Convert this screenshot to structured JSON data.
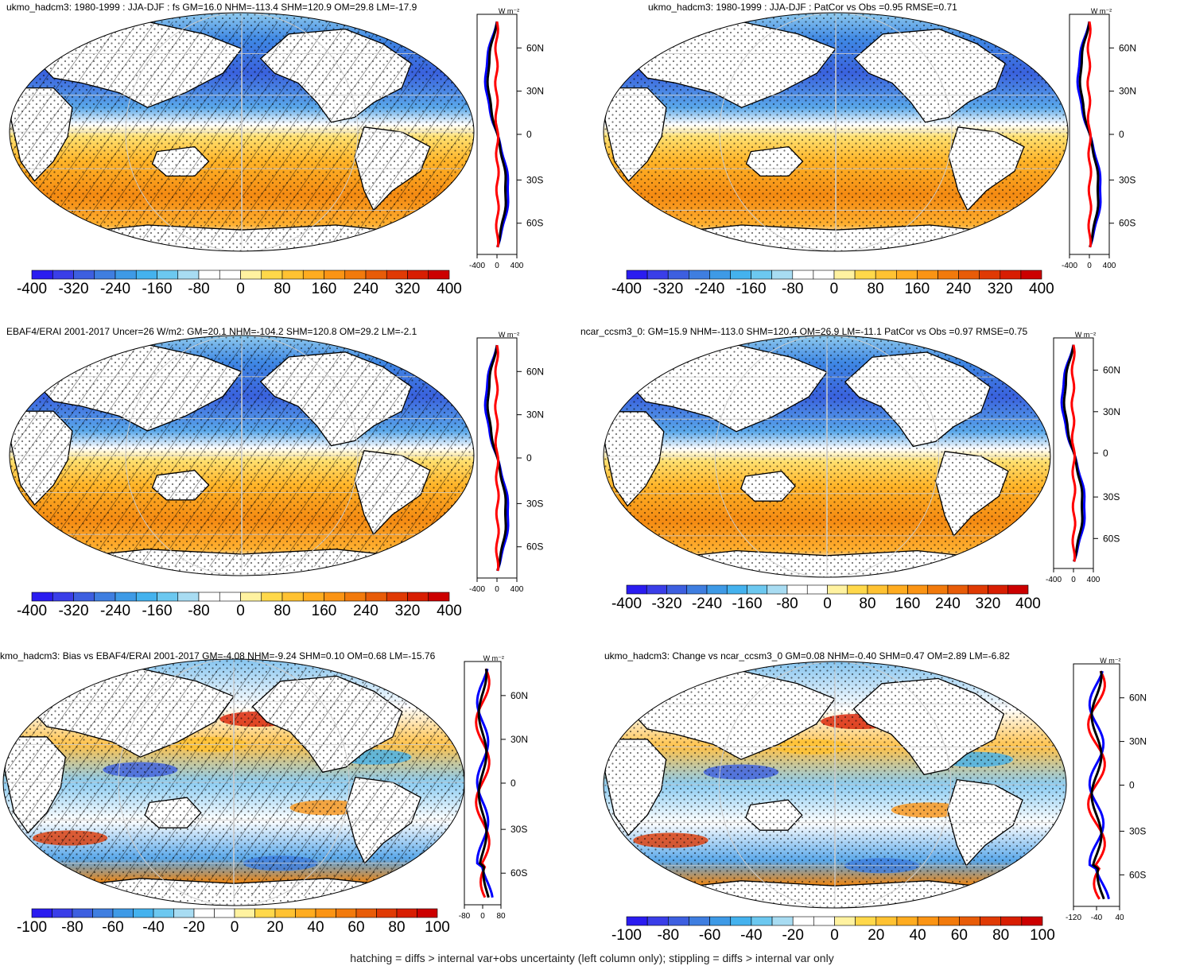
{
  "panels": [
    {
      "title": "ukmo_hadcm3: 1980-1999 : JJA-DJF : fs GM=16.0 NHM=-113.4 SHM=120.9 OM=29.8 LM=-17.9",
      "profile_unit": "W m⁻²",
      "lat_ticks": [
        "60N",
        "30N",
        "0",
        "30S",
        "60S"
      ],
      "x_ticks": [
        "-400",
        "0",
        "400"
      ],
      "colorbar_labels": [
        "-400",
        "-320",
        "-240",
        "-160",
        "-80",
        "0",
        "80",
        "160",
        "240",
        "320",
        "400"
      ]
    },
    {
      "title": "ukmo_hadcm3: 1980-1999 : JJA-DJF : PatCor vs Obs =0.95 RMSE=0.71",
      "profile_unit": "W m⁻²",
      "lat_ticks": [
        "60N",
        "30N",
        "0",
        "30S",
        "60S"
      ],
      "x_ticks": [
        "-400",
        "0",
        "400"
      ],
      "colorbar_labels": [
        "-400",
        "-320",
        "-240",
        "-160",
        "-80",
        "0",
        "80",
        "160",
        "240",
        "320",
        "400"
      ]
    },
    {
      "title": "EBAF4/ERAI 2001-2017 Uncer=26 W/m2: GM=20.1 NHM=-104.2 SHM=120.8 OM=29.2 LM=-2.1",
      "profile_unit": "W m⁻²",
      "lat_ticks": [
        "60N",
        "30N",
        "0",
        "30S",
        "60S"
      ],
      "x_ticks": [
        "-400",
        "0",
        "400"
      ],
      "colorbar_labels": [
        "-400",
        "-320",
        "-240",
        "-160",
        "-80",
        "0",
        "80",
        "160",
        "240",
        "320",
        "400"
      ]
    },
    {
      "title": "ncar_ccsm3_0: GM=15.9 NHM=-113.0 SHM=120.4 OM=26.9 LM=-11.1 PatCor vs Obs =0.97 RMSE=0.75",
      "profile_unit": "W m⁻²",
      "lat_ticks": [
        "60N",
        "30N",
        "0",
        "30S",
        "60S"
      ],
      "x_ticks": [
        "-400",
        "0",
        "400"
      ],
      "colorbar_labels": [
        "-400",
        "-320",
        "-240",
        "-160",
        "-80",
        "0",
        "80",
        "160",
        "240",
        "320",
        "400"
      ]
    },
    {
      "title": "kmo_hadcm3: Bias vs EBAF4/ERAI 2001-2017 GM=-4.08 NHM=-9.24 SHM=0.10 OM=0.68 LM=-15.76",
      "profile_unit": "W m⁻²",
      "lat_ticks": [
        "60N",
        "30N",
        "0",
        "30S",
        "60S"
      ],
      "x_ticks": [
        "-80",
        "0",
        "80"
      ],
      "colorbar_labels": [
        "-100",
        "-80",
        "-60",
        "-40",
        "-20",
        "0",
        "20",
        "40",
        "60",
        "80",
        "100"
      ]
    },
    {
      "title": "ukmo_hadcm3: Change vs ncar_ccsm3_0 GM=0.08 NHM=-0.40 SHM=0.47 OM=2.89 LM=-6.82",
      "profile_unit": "W m⁻²",
      "lat_ticks": [
        "60N",
        "30N",
        "0",
        "30S",
        "60S"
      ],
      "x_ticks": [
        "-120",
        "-40",
        "40"
      ],
      "colorbar_labels": [
        "-100",
        "-80",
        "-60",
        "-40",
        "-20",
        "0",
        "20",
        "40",
        "60",
        "80",
        "100"
      ]
    }
  ],
  "colors": {
    "colorbar": [
      "#2a1cf0",
      "#3a3ee8",
      "#3d5fe0",
      "#3f7ee0",
      "#3e9ae6",
      "#44b2ee",
      "#6cc8f0",
      "#a8dcf2",
      "#ffffff",
      "#ffffff",
      "#fff2a0",
      "#ffd84a",
      "#ffc232",
      "#ffac20",
      "#fb9414",
      "#f27a0c",
      "#e85c08",
      "#e03a04",
      "#d81e02",
      "#cc0000"
    ],
    "profile_model": "#000000",
    "profile_obs_or_ref": "#0000ff",
    "profile_diff": "#ff0000"
  },
  "footnote": "hatching = diffs > internal var+obs uncertainty (left column only); stippling = diffs > internal var only"
}
